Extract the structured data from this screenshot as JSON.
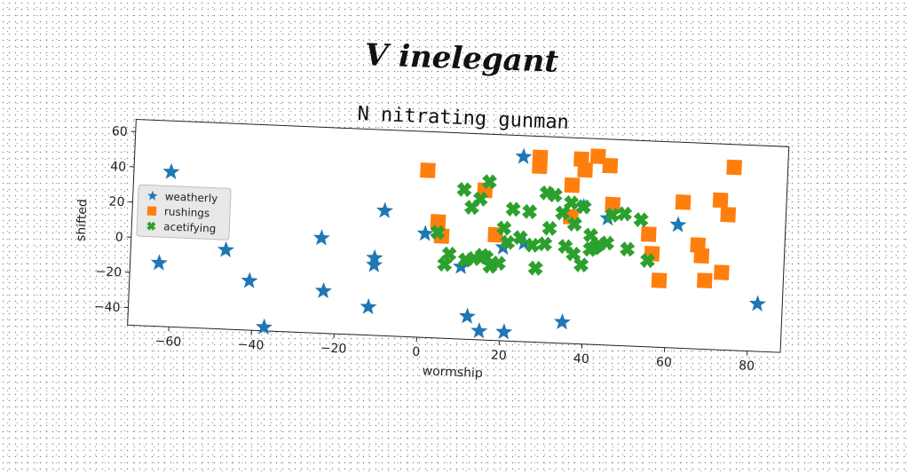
{
  "suptitle": "V inelegant",
  "chart_data": {
    "type": "scatter",
    "title": "N nitrating gunman",
    "xlabel": "wormship",
    "ylabel": "shifted",
    "xlim": [
      -70,
      88
    ],
    "ylim": [
      -50,
      67
    ],
    "xticks": [
      -60,
      -40,
      -20,
      0,
      20,
      40,
      60,
      80
    ],
    "yticks": [
      -40,
      -20,
      0,
      20,
      40,
      60
    ],
    "grid": false,
    "legend_position": "center-left",
    "series": [
      {
        "name": "weatherly",
        "marker": "star",
        "color": "#1f77b4",
        "points": [
          [
            -61,
            38
          ],
          [
            -63,
            -14
          ],
          [
            -47,
            -5
          ],
          [
            -41,
            -22
          ],
          [
            -37,
            -48
          ],
          [
            -24,
            4
          ],
          [
            -23,
            -26
          ],
          [
            -12,
            -34
          ],
          [
            -11,
            -6
          ],
          [
            -11,
            -10
          ],
          [
            -9,
            21
          ],
          [
            1,
            9
          ],
          [
            10,
            -9
          ],
          [
            12,
            -37
          ],
          [
            15,
            -45
          ],
          [
            20,
            3
          ],
          [
            21,
            -45
          ],
          [
            24,
            55
          ],
          [
            25,
            6
          ],
          [
            35,
            -38
          ],
          [
            39,
            28
          ],
          [
            45,
            22
          ],
          [
            62,
            20
          ],
          [
            82,
            -23
          ]
        ]
      },
      {
        "name": "rushings",
        "marker": "square",
        "color": "#ff7f0e",
        "points": [
          [
            1,
            45
          ],
          [
            4,
            16
          ],
          [
            5,
            8
          ],
          [
            15,
            35
          ],
          [
            18,
            10
          ],
          [
            28,
            50
          ],
          [
            28,
            55
          ],
          [
            36,
            40
          ],
          [
            36,
            22
          ],
          [
            38,
            55
          ],
          [
            39,
            49
          ],
          [
            42,
            57
          ],
          [
            45,
            52
          ],
          [
            46,
            30
          ],
          [
            55,
            14
          ],
          [
            56,
            3
          ],
          [
            58,
            -12
          ],
          [
            63,
            33
          ],
          [
            67,
            9
          ],
          [
            68,
            3
          ],
          [
            69,
            -11
          ],
          [
            72,
            35
          ],
          [
            73,
            -6
          ],
          [
            74,
            27
          ],
          [
            75,
            54
          ]
        ]
      },
      {
        "name": "acetifying",
        "marker": "x",
        "color": "#2ca02c",
        "points": [
          [
            4,
            10
          ],
          [
            6,
            -8
          ],
          [
            7,
            -2
          ],
          [
            10,
            35
          ],
          [
            11,
            -5
          ],
          [
            12,
            25
          ],
          [
            13,
            -4
          ],
          [
            14,
            30
          ],
          [
            15,
            -2
          ],
          [
            16,
            40
          ],
          [
            16,
            -3
          ],
          [
            17,
            -8
          ],
          [
            19,
            -6
          ],
          [
            20,
            14
          ],
          [
            21,
            6
          ],
          [
            22,
            25
          ],
          [
            24,
            9
          ],
          [
            26,
            24
          ],
          [
            27,
            5
          ],
          [
            28,
            -8
          ],
          [
            30,
            6
          ],
          [
            30,
            35
          ],
          [
            31,
            15
          ],
          [
            32,
            34
          ],
          [
            34,
            24
          ],
          [
            35,
            5
          ],
          [
            36,
            30
          ],
          [
            37,
            1
          ],
          [
            37,
            18
          ],
          [
            39,
            -5
          ],
          [
            39,
            28
          ],
          [
            41,
            12
          ],
          [
            41,
            4
          ],
          [
            42,
            5
          ],
          [
            43,
            7
          ],
          [
            45,
            8
          ],
          [
            46,
            24
          ],
          [
            49,
            25
          ],
          [
            50,
            5
          ],
          [
            53,
            22
          ],
          [
            55,
            -1
          ]
        ]
      }
    ]
  }
}
